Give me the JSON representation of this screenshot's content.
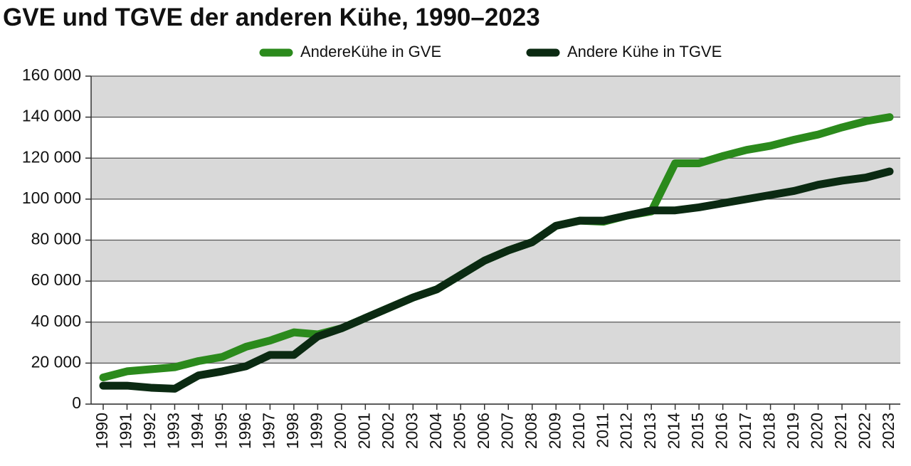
{
  "chart_data": {
    "type": "line",
    "title": "GVE und TGVE der anderen Kühe, 1990–2023",
    "categories": [
      "1990",
      "1991",
      "1992",
      "1993",
      "1994",
      "1995",
      "1996",
      "1997",
      "1998",
      "1999",
      "2000",
      "2001",
      "2002",
      "2003",
      "2004",
      "2005",
      "2006",
      "2007",
      "2008",
      "2009",
      "2010",
      "2011",
      "2012",
      "2013",
      "2014",
      "2015",
      "2016",
      "2017",
      "2018",
      "2019",
      "2020",
      "2021",
      "2022",
      "2023"
    ],
    "series": [
      {
        "name": "AndereKühe in GVE",
        "color": "#2b8a1c",
        "values": [
          13000,
          16000,
          17000,
          18000,
          21000,
          23000,
          28000,
          31000,
          35000,
          34000,
          37000,
          42000,
          47000,
          52000,
          56000,
          63000,
          70000,
          75000,
          79000,
          87000,
          89500,
          89000,
          92000,
          94000,
          117500,
          117500,
          121000,
          124000,
          126000,
          129000,
          131500,
          135000,
          138000,
          140000
        ]
      },
      {
        "name": "Andere Kühe in TGVE",
        "color": "#0b2a12",
        "values": [
          9000,
          9000,
          8000,
          7500,
          14000,
          16000,
          18500,
          24000,
          24000,
          33000,
          37000,
          42000,
          47000,
          52000,
          56000,
          63000,
          70000,
          75000,
          79000,
          87000,
          89500,
          89500,
          92000,
          94500,
          94500,
          96000,
          98000,
          100000,
          102000,
          104000,
          107000,
          109000,
          110500,
          113500
        ]
      }
    ],
    "ylim": [
      0,
      160000
    ],
    "yticks": [
      0,
      {
        "value": 20000,
        "label": "20 000"
      },
      {
        "value": 40000,
        "label": "40 000"
      },
      {
        "value": 60000,
        "label": "60 000"
      },
      {
        "value": 80000,
        "label": "80 000"
      },
      {
        "value": 100000,
        "label": "100 000"
      },
      {
        "value": 120000,
        "label": "120 000"
      },
      {
        "value": 140000,
        "label": "140 000"
      },
      {
        "value": 160000,
        "label": "160 000"
      }
    ],
    "grid": true,
    "legend": "top"
  }
}
